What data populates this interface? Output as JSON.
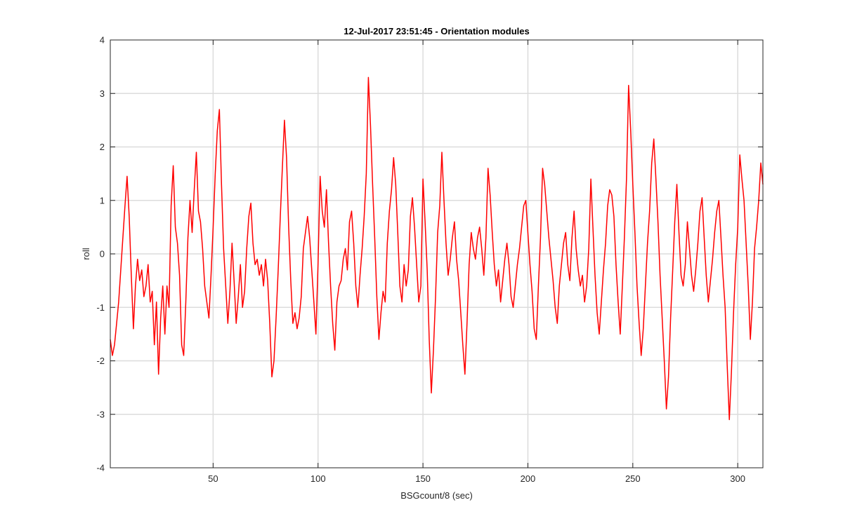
{
  "chart_data": {
    "type": "line",
    "title": "12-Jul-2017 23:51:45 - Orientation modules",
    "xlabel": "BSGcount/8 (sec)",
    "ylabel": "roll",
    "xlim": [
      1,
      312
    ],
    "ylim": [
      -4,
      4
    ],
    "xticks": [
      50,
      100,
      150,
      200,
      250,
      300
    ],
    "yticks": [
      -4,
      -3,
      -2,
      -1,
      0,
      1,
      2,
      3,
      4
    ],
    "grid": true,
    "line_color": "#ff0000",
    "series": [
      {
        "x": [
          1,
          2,
          3,
          4,
          5,
          6,
          7,
          8,
          9,
          10,
          11,
          12,
          13,
          14,
          15,
          16,
          17,
          18,
          19,
          20,
          21,
          22,
          23,
          24,
          25,
          26,
          27,
          28,
          29,
          30,
          31,
          32,
          33,
          34,
          35,
          36,
          37,
          38,
          39,
          40,
          41,
          42,
          43,
          44,
          45,
          46,
          47,
          48,
          49,
          50,
          51,
          52,
          53,
          54,
          55,
          56,
          57,
          58,
          59,
          60,
          61,
          62,
          63,
          64,
          65,
          66,
          67,
          68,
          69,
          70,
          71,
          72,
          73,
          74,
          75,
          76,
          77,
          78,
          79,
          80,
          81,
          82,
          83,
          84,
          85,
          86,
          87,
          88,
          89,
          90,
          91,
          92,
          93,
          94,
          95,
          96,
          97,
          98,
          99,
          100,
          101,
          102,
          103,
          104,
          105,
          106,
          107,
          108,
          109,
          110,
          111,
          112,
          113,
          114,
          115,
          116,
          117,
          118,
          119,
          120,
          121,
          122,
          123,
          124,
          125,
          126,
          127,
          128,
          129,
          130,
          131,
          132,
          133,
          134,
          135,
          136,
          137,
          138,
          139,
          140,
          141,
          142,
          143,
          144,
          145,
          146,
          147,
          148,
          149,
          150,
          151,
          152,
          153,
          154,
          155,
          156,
          157,
          158,
          159,
          160,
          161,
          162,
          163,
          164,
          165,
          166,
          167,
          168,
          169,
          170,
          171,
          172,
          173,
          174,
          175,
          176,
          177,
          178,
          179,
          180,
          181,
          182,
          183,
          184,
          185,
          186,
          187,
          188,
          189,
          190,
          191,
          192,
          193,
          194,
          195,
          196,
          197,
          198,
          199,
          200,
          201,
          202,
          203,
          204,
          205,
          206,
          207,
          208,
          209,
          210,
          211,
          212,
          213,
          214,
          215,
          216,
          217,
          218,
          219,
          220,
          221,
          222,
          223,
          224,
          225,
          226,
          227,
          228,
          229,
          230,
          231,
          232,
          233,
          234,
          235,
          236,
          237,
          238,
          239,
          240,
          241,
          242,
          243,
          244,
          245,
          246,
          247,
          248,
          249,
          250,
          251,
          252,
          253,
          254,
          255,
          256,
          257,
          258,
          259,
          260,
          261,
          262,
          263,
          264,
          265,
          266,
          267,
          268,
          269,
          270,
          271,
          272,
          273,
          274,
          275,
          276,
          277,
          278,
          279,
          280,
          281,
          282,
          283,
          284,
          285,
          286,
          287,
          288,
          289,
          290,
          291,
          292,
          293,
          294,
          295,
          296,
          297,
          298,
          299,
          300,
          301,
          302,
          303,
          304,
          305,
          306,
          307,
          308,
          309,
          310,
          311,
          312
        ],
        "y": [
          -1.6,
          -1.9,
          -1.7,
          -1.3,
          -0.9,
          -0.3,
          0.3,
          0.9,
          1.45,
          0.7,
          -0.4,
          -1.4,
          -0.6,
          -0.1,
          -0.5,
          -0.3,
          -0.8,
          -0.6,
          -0.2,
          -0.9,
          -0.7,
          -1.7,
          -0.9,
          -2.25,
          -1.2,
          -0.6,
          -1.5,
          -0.6,
          -1.0,
          0.9,
          1.65,
          0.5,
          0.2,
          -0.4,
          -1.7,
          -1.9,
          -0.9,
          0.3,
          1.0,
          0.4,
          1.2,
          1.9,
          0.8,
          0.6,
          0.1,
          -0.6,
          -0.9,
          -1.2,
          -0.4,
          0.5,
          1.5,
          2.3,
          2.7,
          1.3,
          0.1,
          -0.6,
          -1.3,
          -0.7,
          0.2,
          -0.5,
          -1.3,
          -0.8,
          -0.2,
          -1.0,
          -0.7,
          0.1,
          0.7,
          0.95,
          0.2,
          -0.2,
          -0.1,
          -0.4,
          -0.2,
          -0.6,
          -0.1,
          -0.5,
          -1.3,
          -2.3,
          -2.0,
          -1.2,
          -0.3,
          0.7,
          1.6,
          2.5,
          1.8,
          0.5,
          -0.5,
          -1.3,
          -1.1,
          -1.4,
          -1.2,
          -0.8,
          0.1,
          0.4,
          0.7,
          0.3,
          -0.3,
          -0.9,
          -1.5,
          -0.2,
          1.45,
          0.8,
          0.5,
          1.2,
          0.2,
          -0.6,
          -1.3,
          -1.8,
          -0.9,
          -0.6,
          -0.5,
          -0.1,
          0.1,
          -0.3,
          0.6,
          0.8,
          0.2,
          -0.6,
          -1.0,
          -0.4,
          0.1,
          0.7,
          1.5,
          3.3,
          2.4,
          1.3,
          0.3,
          -0.8,
          -1.6,
          -1.1,
          -0.7,
          -0.9,
          0.2,
          0.8,
          1.2,
          1.8,
          1.3,
          0.4,
          -0.6,
          -0.9,
          -0.2,
          -0.6,
          -0.3,
          0.7,
          1.05,
          0.5,
          -0.2,
          -0.9,
          -0.6,
          1.4,
          0.6,
          -0.3,
          -1.6,
          -2.6,
          -1.8,
          -0.8,
          0.4,
          0.9,
          1.9,
          1.0,
          0.2,
          -0.4,
          -0.1,
          0.3,
          0.6,
          -0.1,
          -0.5,
          -1.1,
          -1.7,
          -2.25,
          -1.3,
          -0.2,
          0.4,
          0.1,
          -0.1,
          0.3,
          0.5,
          0.1,
          -0.4,
          0.3,
          1.6,
          1.1,
          0.4,
          -0.2,
          -0.6,
          -0.3,
          -0.9,
          -0.5,
          -0.1,
          0.2,
          -0.2,
          -0.8,
          -1.0,
          -0.6,
          -0.2,
          0.1,
          0.5,
          0.9,
          1.0,
          0.4,
          -0.2,
          -0.7,
          -1.4,
          -1.6,
          -0.6,
          0.3,
          1.6,
          1.3,
          0.8,
          0.3,
          -0.1,
          -0.5,
          -1.0,
          -1.3,
          -0.6,
          -0.2,
          0.2,
          0.4,
          -0.2,
          -0.5,
          0.3,
          0.8,
          0.1,
          -0.3,
          -0.6,
          -0.4,
          -0.9,
          -0.6,
          0.1,
          1.4,
          0.5,
          -0.4,
          -1.1,
          -1.5,
          -0.9,
          -0.3,
          0.2,
          0.9,
          1.2,
          1.1,
          0.7,
          -0.2,
          -0.9,
          -1.5,
          -0.6,
          0.3,
          1.4,
          3.15,
          2.3,
          1.3,
          0.4,
          -0.6,
          -1.3,
          -1.9,
          -1.4,
          -0.6,
          0.2,
          0.8,
          1.7,
          2.15,
          1.4,
          0.6,
          -0.4,
          -1.2,
          -2.0,
          -2.9,
          -2.3,
          -1.2,
          -0.3,
          0.6,
          1.3,
          0.4,
          -0.4,
          -0.6,
          -0.2,
          0.6,
          0.1,
          -0.4,
          -0.7,
          -0.3,
          0.2,
          0.8,
          1.05,
          0.3,
          -0.4,
          -0.9,
          -0.5,
          -0.1,
          0.4,
          0.8,
          1.0,
          0.3,
          -0.4,
          -1.0,
          -2.1,
          -3.1,
          -2.2,
          -1.1,
          -0.2,
          0.5,
          1.85,
          1.4,
          1.0,
          0.2,
          -0.6,
          -1.6,
          -0.9,
          0.1,
          0.5,
          1.0,
          1.7,
          1.3
        ]
      }
    ]
  }
}
